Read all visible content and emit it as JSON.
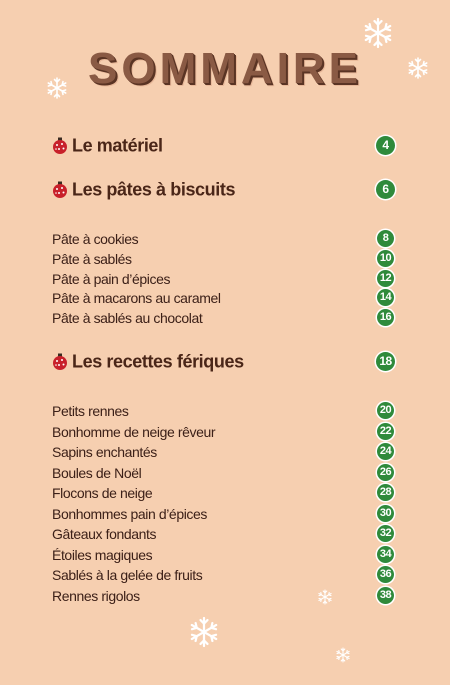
{
  "title": "SOMMAIRE",
  "sections": [
    {
      "title": "Le matériel",
      "page": 4,
      "items": []
    },
    {
      "title": "Les pâtes à biscuits",
      "page": 6,
      "items": [
        {
          "label": "Pâte à cookies",
          "page": 8
        },
        {
          "label": "Pâte à  sablés",
          "page": 10
        },
        {
          "label": "Pâte à pain d’épices",
          "page": 12
        },
        {
          "label": "Pâte à macarons au caramel",
          "page": 14
        },
        {
          "label": "Pâte à sablés au chocolat",
          "page": 16
        }
      ]
    },
    {
      "title": "Les recettes fériques",
      "page": 18,
      "items": [
        {
          "label": "Petits rennes",
          "page": 20
        },
        {
          "label": "Bonhomme de neige rêveur",
          "page": 22
        },
        {
          "label": "Sapins enchantés",
          "page": 24
        },
        {
          "label": "Boules de Noël",
          "page": 26
        },
        {
          "label": "Flocons de neige",
          "page": 28
        },
        {
          "label": "Bonhommes pain d’épices",
          "page": 30
        },
        {
          "label": "Gâteaux fondants",
          "page": 32
        },
        {
          "label": "Étoiles magiques",
          "page": 34
        },
        {
          "label": "Sablés à la gelée de fruits",
          "page": 36
        },
        {
          "label": "Rennes rigolos",
          "page": 38
        }
      ]
    }
  ]
}
